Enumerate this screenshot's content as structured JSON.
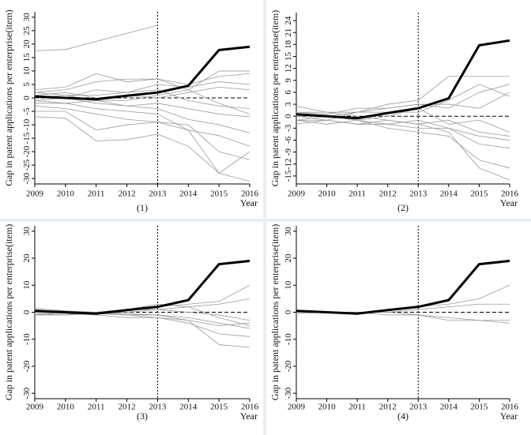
{
  "chart_data": [
    {
      "type": "line",
      "ylabel": "Gap in patent applications per enterprise(item)",
      "xlabel": "Year",
      "caption": "(1)",
      "x": [
        2009,
        2010,
        2011,
        2012,
        2013,
        2014,
        2015,
        2016
      ],
      "xlim": [
        2009,
        2016
      ],
      "ylim": [
        -32,
        32
      ],
      "yticks": [
        -30,
        -25,
        -20,
        -15,
        -10,
        -5,
        0,
        5,
        10,
        15,
        20,
        25,
        30
      ],
      "vline": 2013,
      "hline": 0,
      "series": [
        {
          "color": "#9a9a9a",
          "linewidth": 0.8,
          "values": [
            17.5,
            18,
            21,
            24,
            27,
            null,
            null,
            null
          ]
        },
        {
          "color": "#9a9a9a",
          "linewidth": 0.8,
          "values": [
            3,
            4,
            9,
            6,
            7,
            3,
            10,
            10
          ]
        },
        {
          "color": "#9a9a9a",
          "linewidth": 0.8,
          "values": [
            2,
            3,
            6,
            7,
            7,
            5,
            8,
            9
          ]
        },
        {
          "color": "#9a9a9a",
          "linewidth": 0.8,
          "values": [
            -1,
            0,
            3,
            2,
            5,
            4,
            6,
            5
          ]
        },
        {
          "color": "#9a9a9a",
          "linewidth": 0.8,
          "values": [
            1,
            0,
            -2,
            -3,
            -4,
            -8,
            -10,
            -13
          ]
        },
        {
          "color": "#9a9a9a",
          "linewidth": 0.8,
          "values": [
            -3,
            -4,
            -6,
            -8,
            -9,
            -12,
            -14,
            -18
          ]
        },
        {
          "color": "#9a9a9a",
          "linewidth": 0.8,
          "values": [
            -5,
            -5,
            -12,
            -10,
            -9,
            -10,
            -20,
            -23
          ]
        },
        {
          "color": "#9a9a9a",
          "linewidth": 0.8,
          "values": [
            -7,
            -7.5,
            -16,
            -15.5,
            -13.5,
            -18,
            -28,
            -31
          ]
        },
        {
          "color": "#9a9a9a",
          "linewidth": 0.8,
          "values": [
            -2,
            -2,
            -4,
            -5,
            -6,
            -12,
            -28,
            -20
          ]
        },
        {
          "color": "#9a9a9a",
          "linewidth": 0.8,
          "values": [
            0,
            1,
            1,
            2,
            3,
            -1,
            -3,
            -4
          ]
        },
        {
          "color": "#9a9a9a",
          "linewidth": 0.8,
          "values": [
            1,
            2,
            0,
            1,
            0,
            2,
            4,
            3
          ]
        },
        {
          "color": "#9a9a9a",
          "linewidth": 0.8,
          "values": [
            -1,
            -2,
            -1,
            -3,
            -2,
            -4,
            -6,
            -7
          ]
        },
        {
          "color": "#9a9a9a",
          "linewidth": 0.8,
          "values": [
            2,
            1,
            -1,
            -1,
            1,
            3,
            -2,
            -6
          ]
        },
        {
          "color": "#000000",
          "linewidth": 3,
          "values": [
            0.5,
            0,
            -0.5,
            0.8,
            2,
            4.5,
            17.8,
            19
          ]
        }
      ]
    },
    {
      "type": "line",
      "ylabel": "Gap in patent applications per enterprise(item)",
      "xlabel": "Year",
      "caption": "(2)",
      "x": [
        2009,
        2010,
        2011,
        2012,
        2013,
        2014,
        2015,
        2016
      ],
      "xlim": [
        2009,
        2016
      ],
      "ylim": [
        -17,
        26
      ],
      "yticks": [
        -15,
        -12,
        -9,
        -6,
        -3,
        0,
        3,
        6,
        9,
        12,
        15,
        18,
        21,
        24
      ],
      "vline": 2013,
      "hline": 0,
      "series": [
        {
          "color": "#9a9a9a",
          "linewidth": 0.8,
          "values": [
            2.5,
            1,
            1,
            3,
            4,
            10,
            10,
            10
          ]
        },
        {
          "color": "#9a9a9a",
          "linewidth": 0.8,
          "values": [
            1,
            0.5,
            2,
            2,
            3,
            2,
            6,
            8
          ]
        },
        {
          "color": "#9a9a9a",
          "linewidth": 0.8,
          "values": [
            -1,
            -1,
            -2,
            -1,
            -2,
            -4,
            -13,
            -16
          ]
        },
        {
          "color": "#9a9a9a",
          "linewidth": 0.8,
          "values": [
            -1,
            -2,
            -1,
            -3,
            -4,
            -5,
            -11,
            -13
          ]
        },
        {
          "color": "#9a9a9a",
          "linewidth": 0.8,
          "values": [
            0,
            0,
            1,
            2,
            3,
            3,
            2,
            6
          ]
        },
        {
          "color": "#9a9a9a",
          "linewidth": 0.8,
          "values": [
            -2,
            -1,
            -2,
            -2,
            -1,
            -3,
            -7,
            -8
          ]
        },
        {
          "color": "#9a9a9a",
          "linewidth": 0.8,
          "values": [
            1,
            1,
            0,
            -1,
            -2,
            -1,
            -4,
            -5
          ]
        },
        {
          "color": "#9a9a9a",
          "linewidth": 0.8,
          "values": [
            -1,
            0,
            -1,
            0,
            2,
            -2,
            -1,
            -4
          ]
        },
        {
          "color": "#9a9a9a",
          "linewidth": 0.8,
          "values": [
            0,
            -1,
            1,
            1,
            1,
            4,
            8,
            5
          ]
        },
        {
          "color": "#9a9a9a",
          "linewidth": 0.8,
          "values": [
            0.5,
            0,
            -1,
            -2,
            -3,
            -3,
            -5,
            -6
          ]
        },
        {
          "color": "#000000",
          "linewidth": 3,
          "values": [
            0.5,
            0,
            -0.5,
            0.8,
            2,
            4.5,
            17.8,
            19
          ]
        }
      ]
    },
    {
      "type": "line",
      "ylabel": "Gap in patent applications per enterprise(item)",
      "xlabel": "Year",
      "caption": "(3)",
      "x": [
        2009,
        2010,
        2011,
        2012,
        2013,
        2014,
        2015,
        2016
      ],
      "xlim": [
        2009,
        2016
      ],
      "ylim": [
        -32,
        32
      ],
      "yticks": [
        -30,
        -20,
        -10,
        0,
        10,
        20,
        30
      ],
      "vline": 2013,
      "hline": 0,
      "series": [
        {
          "color": "#9a9a9a",
          "linewidth": 0.8,
          "values": [
            1.5,
            0.5,
            0,
            1,
            2,
            3,
            4,
            10
          ]
        },
        {
          "color": "#9a9a9a",
          "linewidth": 0.8,
          "values": [
            1,
            0,
            -0.5,
            1,
            3,
            2,
            3,
            5
          ]
        },
        {
          "color": "#9a9a9a",
          "linewidth": 0.8,
          "values": [
            -1,
            -1,
            -0.5,
            -1,
            -2,
            -3,
            -12,
            -13
          ]
        },
        {
          "color": "#9a9a9a",
          "linewidth": 0.8,
          "values": [
            0,
            -0.5,
            -1,
            -2,
            -2,
            -4,
            -8,
            -9
          ]
        },
        {
          "color": "#9a9a9a",
          "linewidth": 0.8,
          "values": [
            -1,
            0,
            0,
            1,
            1,
            2,
            -2,
            -5
          ]
        },
        {
          "color": "#9a9a9a",
          "linewidth": 0.8,
          "values": [
            0.5,
            0,
            0,
            -1,
            -1,
            -2,
            -4,
            -6
          ]
        },
        {
          "color": "#9a9a9a",
          "linewidth": 0.8,
          "values": [
            0,
            0.5,
            -0.5,
            0,
            1,
            0,
            -1,
            -3
          ]
        },
        {
          "color": "#9a9a9a",
          "linewidth": 0.8,
          "values": [
            -0.5,
            -1,
            0,
            -0.5,
            -1,
            -3,
            -5,
            -4
          ]
        },
        {
          "color": "#000000",
          "linewidth": 3,
          "values": [
            0.5,
            0,
            -0.5,
            0.8,
            2,
            4.5,
            17.8,
            19
          ]
        }
      ]
    },
    {
      "type": "line",
      "ylabel": "Gap in patent applications per enterprise(item)",
      "xlabel": "Year",
      "caption": "(4)",
      "x": [
        2009,
        2010,
        2011,
        2012,
        2013,
        2014,
        2015,
        2016
      ],
      "xlim": [
        2009,
        2016
      ],
      "ylim": [
        -32,
        32
      ],
      "yticks": [
        -30,
        -20,
        -10,
        0,
        10,
        20,
        30
      ],
      "vline": 2013,
      "hline": 0,
      "series": [
        {
          "color": "#9a9a9a",
          "linewidth": 0.8,
          "values": [
            0,
            0,
            -0.5,
            1,
            2,
            3,
            5,
            10
          ]
        },
        {
          "color": "#9a9a9a",
          "linewidth": 0.8,
          "values": [
            0.3,
            0,
            0,
            0,
            1,
            2,
            3,
            3
          ]
        },
        {
          "color": "#9a9a9a",
          "linewidth": 0.8,
          "values": [
            0,
            0,
            0,
            -1,
            -1,
            -2,
            -3,
            -4
          ]
        },
        {
          "color": "#9a9a9a",
          "linewidth": 0.8,
          "values": [
            -0.5,
            0,
            0,
            0,
            -1,
            -3,
            -3,
            -3
          ]
        },
        {
          "color": "#000000",
          "linewidth": 3,
          "values": [
            0.5,
            0,
            -0.5,
            0.8,
            2,
            4.5,
            17.8,
            19
          ]
        }
      ]
    }
  ]
}
